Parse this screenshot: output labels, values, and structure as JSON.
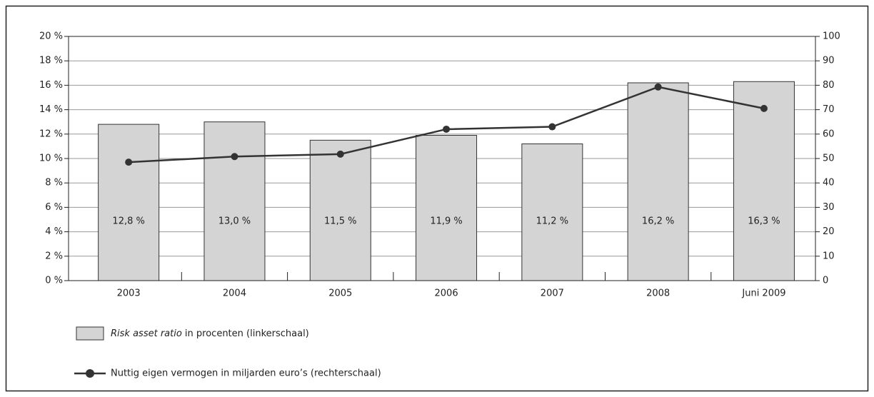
{
  "chart_data": {
    "type": "bar_line",
    "categories": [
      "2003",
      "2004",
      "2005",
      "2006",
      "2007",
      "2008",
      "Juni 2009"
    ],
    "series": [
      {
        "name": "Risk asset ratio in procenten (linkerschaal)",
        "type": "bar",
        "color": "#d4d4d4",
        "values": [
          12.8,
          13.0,
          11.5,
          11.9,
          11.2,
          16.2,
          16.3
        ],
        "value_labels": [
          "12,8 %",
          "13,0 %",
          "11,5 %",
          "11,9 %",
          "11,2 %",
          "16,2 %",
          "16,3 %"
        ]
      },
      {
        "name": "Nuttig eigen vermogen in miljarden euro’s (rechterschaal)",
        "type": "line",
        "color": "#333333",
        "axis": "y2",
        "values": [
          48.5,
          50.8,
          51.8,
          62,
          63,
          79.3,
          70.5
        ]
      }
    ],
    "ylim": [
      0,
      20
    ],
    "yticks": [
      {
        "value": 0,
        "label": "0 %"
      },
      {
        "value": 2,
        "label": "2 %"
      },
      {
        "value": 4,
        "label": "4 %"
      },
      {
        "value": 6,
        "label": "6 %"
      },
      {
        "value": 8,
        "label": "8 %"
      },
      {
        "value": 10,
        "label": "10 %"
      },
      {
        "value": 12,
        "label": "12 %"
      },
      {
        "value": 14,
        "label": "14 %"
      },
      {
        "value": 16,
        "label": "16 %"
      },
      {
        "value": 18,
        "label": "18 %"
      },
      {
        "value": 20,
        "label": "20 %"
      }
    ],
    "y2lim": [
      0,
      100
    ],
    "y2ticks": [
      0,
      10,
      20,
      30,
      40,
      50,
      60,
      70,
      80,
      90,
      100
    ],
    "grid": true
  }
}
